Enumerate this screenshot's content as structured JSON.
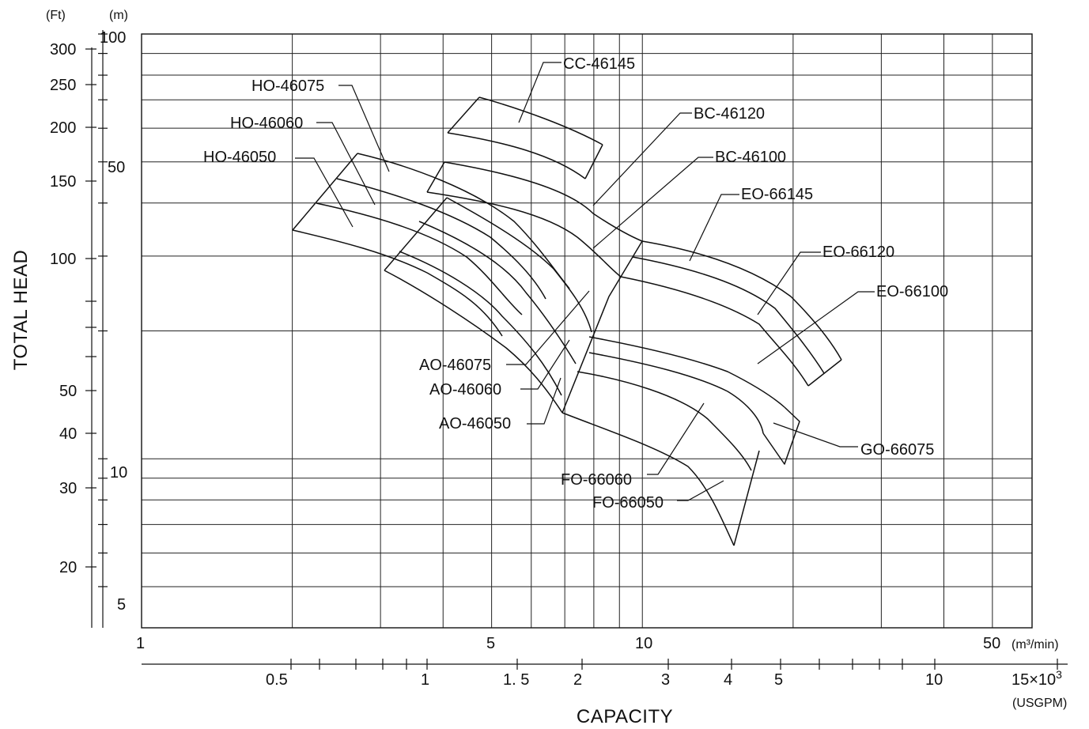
{
  "chart_data": {
    "type": "line",
    "title": "",
    "x_axis_primary": {
      "label": "CAPACITY",
      "unit": "(m³/min)",
      "scale": "log",
      "range": [
        1,
        60
      ],
      "tick_labels": [
        "1",
        "5",
        "10",
        "50"
      ]
    },
    "x_axis_secondary": {
      "unit": "(USGPM)",
      "multiplier": "15×10",
      "multiplier_exp": "3",
      "scale": "log",
      "tick_labels": [
        "0.5",
        "1",
        "1. 5",
        "2",
        "3",
        "4",
        "5",
        "10"
      ]
    },
    "y_axis_left": {
      "label": "TOTAL HEAD",
      "unit": "(Ft)",
      "scale": "log",
      "tick_labels": [
        "300",
        "250",
        "200",
        "150",
        "100",
        "50",
        "40",
        "30",
        "20"
      ]
    },
    "y_axis_right_of_left": {
      "unit": "(m)",
      "scale": "log",
      "range": [
        4,
        100
      ],
      "tick_labels": [
        "100",
        "50",
        "10",
        "5"
      ]
    },
    "grid": true,
    "models": [
      {
        "name": "CC-46145",
        "corners_m3min_m": [
          [
            4.7,
            80
          ],
          [
            8.3,
            68
          ],
          [
            7.6,
            44
          ],
          [
            3.5,
            65
          ]
        ]
      },
      {
        "name": "HO-46075",
        "corners_m3min_m": [
          [
            2.4,
            54
          ],
          [
            4.2,
            48
          ]
        ]
      },
      {
        "name": "HO-46060",
        "corners_m3min_m": [
          [
            2.2,
            47
          ],
          [
            3.8,
            42
          ]
        ]
      },
      {
        "name": "HO-46050",
        "corners_m3min_m": [
          [
            1.9,
            41
          ],
          [
            3.5,
            36
          ]
        ]
      },
      {
        "name": "BC-46120",
        "corners_m3min_m": [
          [
            3.4,
            52
          ],
          [
            9.8,
            30
          ]
        ]
      },
      {
        "name": "BC-46100",
        "corners_m3min_m": [
          [
            3.0,
            45
          ],
          [
            8.8,
            26
          ]
        ]
      },
      {
        "name": "EO-66145",
        "corners_m3min_m": [
          [
            9.8,
            30
          ],
          [
            27,
            17
          ]
        ]
      },
      {
        "name": "EO-66120",
        "corners_m3min_m": [
          [
            9.0,
            27
          ],
          [
            23,
            13
          ]
        ]
      },
      {
        "name": "EO-66100",
        "corners_m3min_m": [
          [
            8.5,
            24
          ],
          [
            19,
            11
          ]
        ]
      },
      {
        "name": "AO-46075",
        "corners_m3min_m": [
          [
            2.5,
            27
          ],
          [
            6.4,
            20
          ]
        ]
      },
      {
        "name": "AO-46060",
        "corners_m3min_m": [
          [
            2.3,
            23
          ],
          [
            5.5,
            15
          ]
        ]
      },
      {
        "name": "AO-46050",
        "corners_m3min_m": [
          [
            2.0,
            22
          ],
          [
            5.0,
            12
          ]
        ]
      },
      {
        "name": "GO-66075",
        "corners_m3min_m": [
          [
            7.5,
            17.5
          ],
          [
            20,
            11.5
          ]
        ]
      },
      {
        "name": "FO-66060",
        "corners_m3min_m": [
          [
            7.2,
            15
          ],
          [
            17,
            10.6
          ]
        ]
      },
      {
        "name": "FO-66050",
        "corners_m3min_m": [
          [
            6.3,
            12
          ],
          [
            16,
            7
          ]
        ]
      }
    ]
  }
}
